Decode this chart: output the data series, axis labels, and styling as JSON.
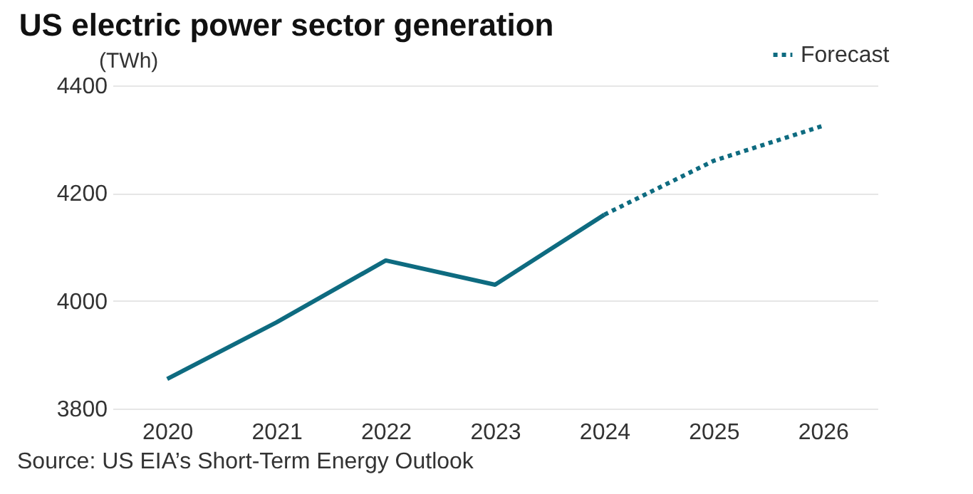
{
  "chart_data": {
    "type": "line",
    "title": "US electric power sector generation",
    "ylabel": "(TWh)",
    "annotations": [
      "Source: US EIA’s Short-Term Energy Outlook"
    ],
    "categories": [
      "2020",
      "2021",
      "2022",
      "2023",
      "2024",
      "2025",
      "2026"
    ],
    "series": [
      {
        "color": "#0e6b80",
        "line_style": "solid",
        "values": [
          3855,
          3960,
          4075,
          4030,
          4160,
          null,
          null
        ]
      },
      {
        "name": "Forecast",
        "color": "#0e6b80",
        "line_style": "dotted",
        "values": [
          null,
          null,
          null,
          null,
          4160,
          4260,
          4325
        ]
      }
    ],
    "ylim": [
      3800,
      4400
    ],
    "yticks": [
      3800,
      4000,
      4200,
      4400
    ],
    "grid": "y",
    "legend": "top right",
    "marker": "none"
  }
}
